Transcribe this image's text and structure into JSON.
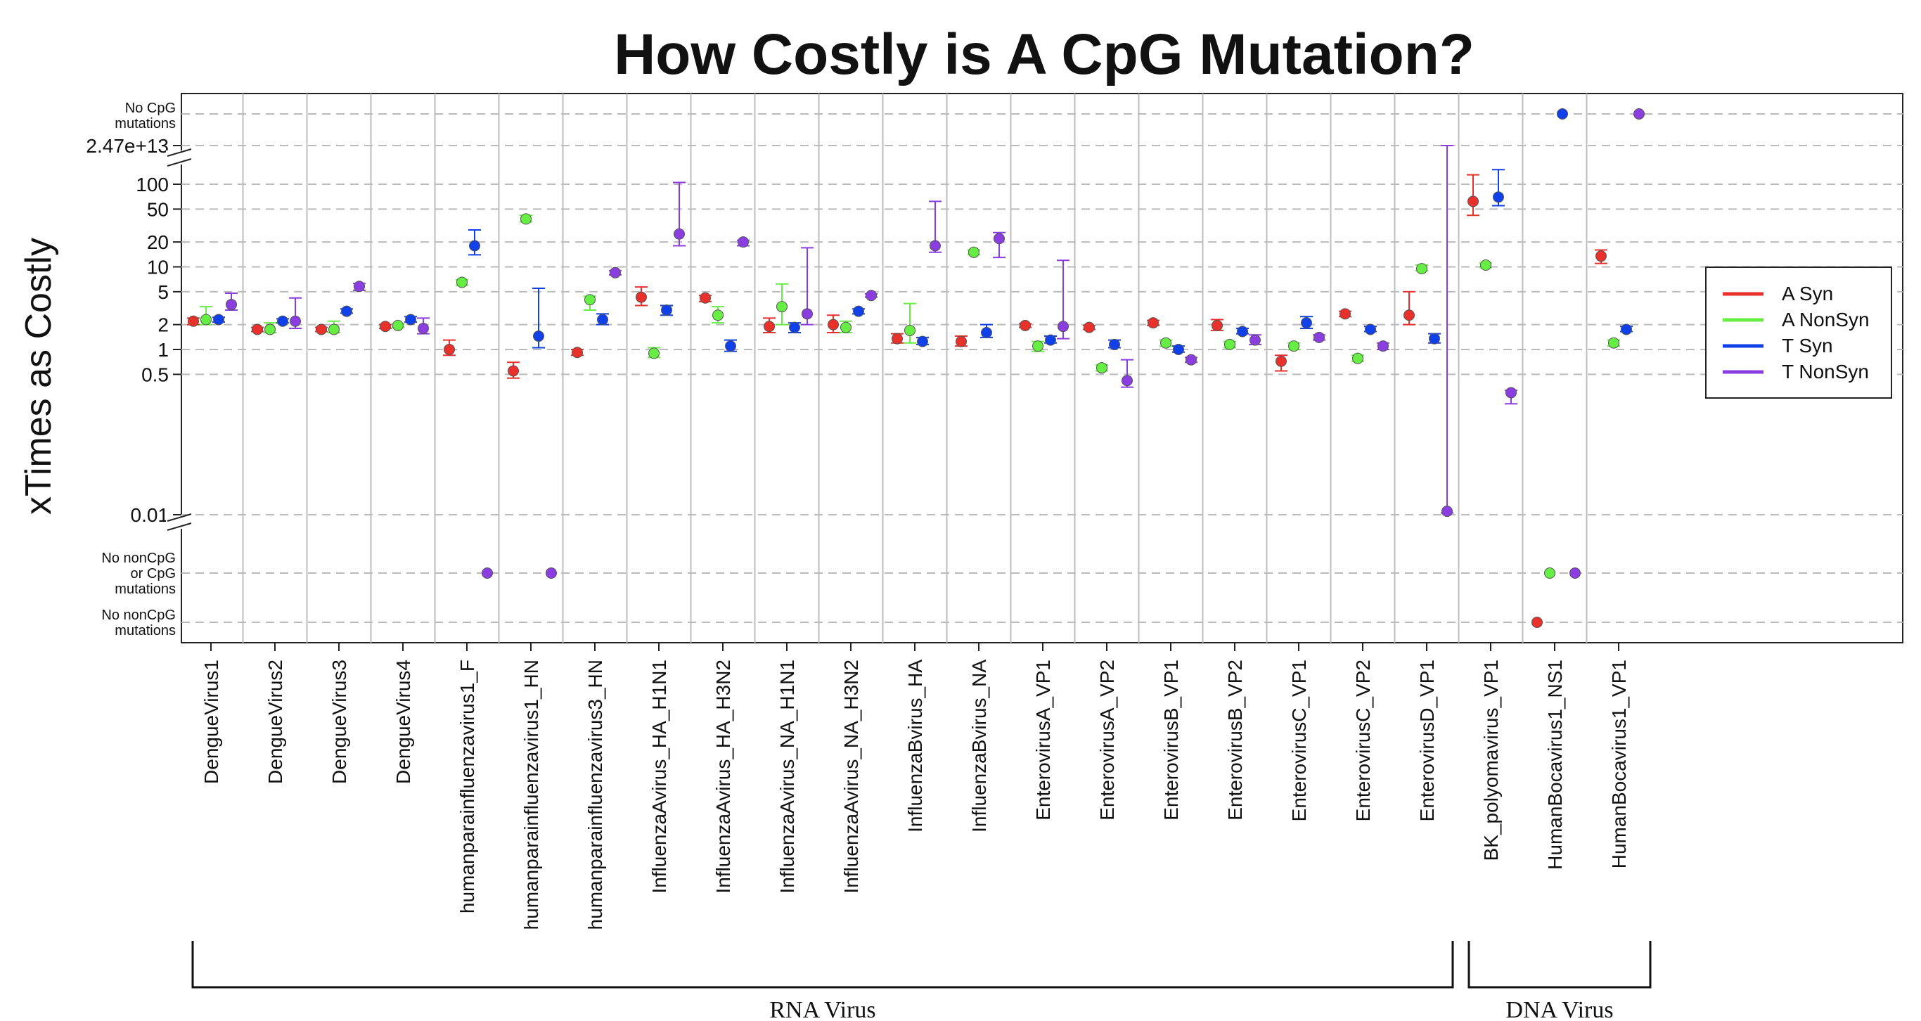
{
  "chart_data": {
    "type": "scatter",
    "title": "How Costly is A CpG Mutation?",
    "ylabel": "xTimes as Costly",
    "xlabel": "",
    "y_scale": "log",
    "y_ticks": [
      {
        "value": 0.01,
        "label": "0.01"
      },
      {
        "value": 0.5,
        "label": "0.5"
      },
      {
        "value": 1,
        "label": "1"
      },
      {
        "value": 2,
        "label": "2"
      },
      {
        "value": 5,
        "label": "5"
      },
      {
        "value": 10,
        "label": "10"
      },
      {
        "value": 20,
        "label": "20"
      },
      {
        "value": 50,
        "label": "50"
      },
      {
        "value": 100,
        "label": "100"
      }
    ],
    "special_rows": {
      "top_break_label": "2.47e+13",
      "no_cpg": "No CpG\nmutations",
      "no_noncpg_or_cpg": "No nonCpG\nor  CpG\nmutations",
      "no_noncpg": "No nonCpG\nmutations"
    },
    "grid": "dashed horizontal lines at tick values; vertical lines between categories",
    "legend_position": "right",
    "categories": [
      "DengueVirus1",
      "DengueVirus2",
      "DengueVirus3",
      "DengueVirus4",
      "humanparainfluenzavirus1_F",
      "humanparainfluenzavirus1_HN",
      "humanparainfluenzavirus3_HN",
      "InfluenzaAvirus_HA_H1N1",
      "InfluenzaAvirus_HA_H3N2",
      "InfluenzaAvirus_NA_H1N1",
      "InfluenzaAvirus_NA_H3N2",
      "InfluenzaBvirus_HA",
      "InfluenzaBvirus_NA",
      "EnterovirusA_VP1",
      "EnterovirusA_VP2",
      "EnterovirusB_VP1",
      "EnterovirusB_VP2",
      "EnterovirusC_VP1",
      "EnterovirusC_VP2",
      "EnterovirusD_VP1",
      "BK_polyomavirus_VP1",
      "HumanBocavirus1_NS1",
      "HumanBocavirus1_VP1"
    ],
    "series": [
      {
        "name": "A Syn",
        "color": "#e8312a",
        "values": [
          2.2,
          1.75,
          1.75,
          1.9,
          1.0,
          0.55,
          0.92,
          4.3,
          4.2,
          1.9,
          2.0,
          1.35,
          1.25,
          1.95,
          1.85,
          2.1,
          1.95,
          0.72,
          2.7,
          2.6,
          62,
          "No nonCpG mutations",
          13.5
        ],
        "lower": [
          2.0,
          1.65,
          1.65,
          1.8,
          0.85,
          0.45,
          0.85,
          3.4,
          3.8,
          1.6,
          1.6,
          1.2,
          1.1,
          1.85,
          1.75,
          1.95,
          1.7,
          0.55,
          2.5,
          2.0,
          42,
          null,
          11
        ],
        "upper": [
          2.4,
          1.85,
          1.85,
          2.0,
          1.3,
          0.7,
          1.0,
          5.7,
          4.5,
          2.4,
          2.6,
          1.55,
          1.45,
          2.05,
          1.95,
          2.25,
          2.3,
          0.85,
          2.9,
          5.0,
          130,
          null,
          16
        ]
      },
      {
        "name": "A NonSyn",
        "color": "#66ee44",
        "values": [
          2.3,
          1.75,
          1.75,
          1.95,
          6.5,
          38,
          4.0,
          0.9,
          2.6,
          3.3,
          1.85,
          1.7,
          15,
          1.1,
          0.6,
          1.2,
          1.15,
          1.1,
          0.78,
          9.5,
          10.5,
          "No nonCpG or CpG mutations",
          1.2
        ],
        "lower": [
          2.0,
          1.6,
          1.6,
          1.85,
          6.0,
          35,
          3.0,
          0.8,
          2.1,
          2.0,
          1.6,
          1.2,
          14,
          0.95,
          0.55,
          1.1,
          1.05,
          1.0,
          0.72,
          9.0,
          9.8,
          null,
          1.1
        ],
        "upper": [
          3.3,
          2.1,
          2.2,
          2.05,
          7.0,
          42,
          4.4,
          1.05,
          3.3,
          6.2,
          2.2,
          3.6,
          16,
          1.25,
          0.65,
          1.3,
          1.25,
          1.2,
          0.85,
          10.5,
          11.2,
          null,
          1.3
        ]
      },
      {
        "name": "T Syn",
        "color": "#1040e8",
        "values": [
          2.3,
          2.2,
          2.9,
          2.3,
          18,
          1.45,
          2.3,
          3.0,
          1.1,
          1.85,
          2.9,
          1.25,
          1.6,
          1.3,
          1.15,
          1.0,
          1.65,
          2.1,
          1.75,
          1.35,
          70,
          "No CpG mutations",
          1.75
        ],
        "lower": [
          2.15,
          2.1,
          2.75,
          2.15,
          14,
          1.05,
          2.0,
          2.6,
          0.95,
          1.6,
          2.7,
          1.15,
          1.4,
          1.2,
          1.05,
          0.93,
          1.55,
          1.8,
          1.65,
          1.2,
          55,
          null,
          1.65
        ],
        "upper": [
          2.45,
          2.35,
          3.1,
          2.5,
          28,
          5.5,
          2.7,
          3.4,
          1.3,
          2.1,
          3.1,
          1.4,
          2.0,
          1.45,
          1.3,
          1.1,
          1.8,
          2.5,
          1.9,
          1.55,
          150,
          null,
          1.9
        ]
      },
      {
        "name": "T NonSyn",
        "color": "#8a3ee0",
        "values": [
          3.5,
          2.2,
          5.8,
          1.8,
          "No nonCpG or CpG mutations",
          "No nonCpG or CpG mutations",
          8.5,
          25,
          20,
          2.7,
          4.5,
          18,
          22,
          1.9,
          0.42,
          0.75,
          1.3,
          1.4,
          1.1,
          0.011,
          0.3,
          "No nonCpG or CpG mutations",
          "No CpG mutations"
        ],
        "lower": [
          3.0,
          1.8,
          5.2,
          1.55,
          null,
          null,
          8.0,
          18,
          18,
          2.0,
          4.3,
          15,
          13,
          1.35,
          0.35,
          0.7,
          1.15,
          1.3,
          1.0,
          0.0105,
          0.22,
          null,
          null
        ],
        "upper": [
          4.8,
          4.2,
          6.3,
          2.4,
          null,
          null,
          9.0,
          105,
          21,
          17,
          4.7,
          62,
          26,
          12,
          0.75,
          0.8,
          1.5,
          1.5,
          1.2,
          "2.47e+13",
          0.32,
          null,
          null
        ]
      }
    ],
    "groups": [
      {
        "label": "RNA Virus"
      },
      {
        "label": "DNA Virus"
      }
    ]
  }
}
